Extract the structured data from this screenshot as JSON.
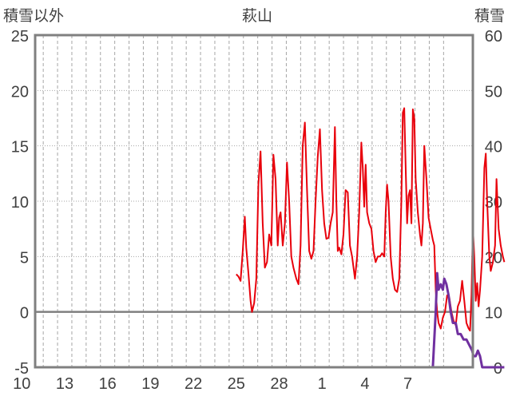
{
  "chart_data": {
    "type": "line",
    "title": "萩山",
    "ylabel_left": "積雪以外",
    "ylabel_right": "積雪",
    "x_tick_labels": [
      "10",
      "13",
      "16",
      "19",
      "22",
      "25",
      "28",
      "1",
      "4",
      "7"
    ],
    "y_left_ticks": [
      "25",
      "20",
      "15",
      "10",
      "5",
      "0",
      "-5"
    ],
    "y_right_ticks": [
      "60",
      "50",
      "40",
      "30",
      "20",
      "10",
      "0"
    ],
    "ylim_left": [
      -5,
      25
    ],
    "ylim_right": [
      0,
      60
    ],
    "grid": true,
    "colors": {
      "temperature": "#e8000b",
      "snow": "#7030a0",
      "frame": "#808080",
      "zero_line": "#7f7f7f",
      "grid": "#a6a6a6"
    },
    "series": [
      {
        "axis": "left",
        "color": "#e8000b",
        "points": [
          [
            0,
            3.4
          ],
          [
            0.15,
            3.2
          ],
          [
            0.3,
            2.8
          ],
          [
            0.45,
            5.5
          ],
          [
            0.6,
            8.6
          ],
          [
            0.7,
            5.8
          ],
          [
            0.85,
            3.5
          ],
          [
            1.0,
            1.0
          ],
          [
            1.1,
            0.0
          ],
          [
            1.25,
            0.8
          ],
          [
            1.4,
            3.0
          ],
          [
            1.55,
            11.5
          ],
          [
            1.7,
            14.5
          ],
          [
            1.85,
            8.0
          ],
          [
            2.0,
            4.0
          ],
          [
            2.15,
            4.5
          ],
          [
            2.3,
            7.0
          ],
          [
            2.45,
            6.0
          ],
          [
            2.6,
            14.2
          ],
          [
            2.75,
            12.0
          ],
          [
            2.9,
            6.0
          ],
          [
            3.0,
            8.5
          ],
          [
            3.1,
            9.0
          ],
          [
            3.25,
            6.0
          ],
          [
            3.4,
            8.0
          ],
          [
            3.55,
            13.5
          ],
          [
            3.7,
            10.0
          ],
          [
            3.85,
            5.0
          ],
          [
            4.0,
            4.0
          ],
          [
            4.2,
            3.0
          ],
          [
            4.35,
            2.5
          ],
          [
            4.5,
            6.0
          ],
          [
            4.65,
            15.0
          ],
          [
            4.8,
            17.1
          ],
          [
            4.95,
            11.0
          ],
          [
            5.1,
            5.5
          ],
          [
            5.25,
            4.8
          ],
          [
            5.4,
            5.5
          ],
          [
            5.55,
            10.0
          ],
          [
            5.7,
            14.0
          ],
          [
            5.85,
            16.5
          ],
          [
            6.0,
            11.0
          ],
          [
            6.15,
            8.0
          ],
          [
            6.3,
            6.6
          ],
          [
            6.45,
            6.7
          ],
          [
            6.6,
            8.0
          ],
          [
            6.75,
            9.0
          ],
          [
            6.9,
            16.7
          ],
          [
            7.0,
            10.0
          ],
          [
            7.1,
            5.5
          ],
          [
            7.2,
            5.8
          ],
          [
            7.35,
            5.2
          ],
          [
            7.5,
            7.0
          ],
          [
            7.65,
            11.0
          ],
          [
            7.8,
            10.8
          ],
          [
            7.95,
            6.0
          ],
          [
            8.1,
            5.0
          ],
          [
            8.3,
            3.0
          ],
          [
            8.45,
            5.0
          ],
          [
            8.6,
            9.0
          ],
          [
            8.75,
            15.3
          ],
          [
            8.85,
            13.0
          ],
          [
            8.95,
            9.5
          ],
          [
            9.05,
            13.3
          ],
          [
            9.15,
            9.0
          ],
          [
            9.3,
            8.0
          ],
          [
            9.45,
            7.5
          ],
          [
            9.6,
            5.5
          ],
          [
            9.75,
            4.5
          ],
          [
            9.9,
            5.0
          ],
          [
            10.05,
            5.0
          ],
          [
            10.2,
            5.3
          ],
          [
            10.35,
            5.0
          ],
          [
            10.45,
            9.0
          ],
          [
            10.55,
            11.5
          ],
          [
            10.65,
            10.0
          ],
          [
            10.8,
            5.0
          ],
          [
            10.95,
            3.0
          ],
          [
            11.1,
            2.0
          ],
          [
            11.25,
            1.8
          ],
          [
            11.4,
            3.0
          ],
          [
            11.55,
            10.0
          ],
          [
            11.65,
            18.0
          ],
          [
            11.75,
            18.4
          ],
          [
            11.85,
            13.0
          ],
          [
            11.95,
            8.0
          ],
          [
            12.05,
            10.5
          ],
          [
            12.15,
            11.0
          ],
          [
            12.25,
            8.0
          ],
          [
            12.35,
            18.3
          ],
          [
            12.45,
            17.5
          ],
          [
            12.55,
            12.0
          ],
          [
            12.7,
            9.0
          ],
          [
            12.85,
            7.0
          ],
          [
            12.95,
            6.0
          ],
          [
            13.05,
            8.0
          ],
          [
            13.15,
            15.0
          ],
          [
            13.3,
            12.0
          ],
          [
            13.45,
            8.5
          ],
          [
            13.6,
            7.5
          ],
          [
            13.75,
            6.5
          ],
          [
            13.85,
            6.0
          ],
          [
            13.95,
            2.0
          ],
          [
            14.05,
            0.0
          ],
          [
            14.15,
            -1.0
          ],
          [
            14.3,
            -1.5
          ],
          [
            14.45,
            -0.5
          ],
          [
            14.6,
            0.0
          ],
          [
            14.75,
            1.5
          ],
          [
            14.9,
            1.3
          ],
          [
            15.05,
            0.0
          ],
          [
            15.2,
            -0.8
          ],
          [
            15.35,
            -1.2
          ],
          [
            15.5,
            0.5
          ],
          [
            15.65,
            1.0
          ],
          [
            15.8,
            2.8
          ],
          [
            15.95,
            1.0
          ],
          [
            16.1,
            -1.0
          ],
          [
            16.25,
            -1.5
          ],
          [
            16.35,
            -1.7
          ],
          [
            16.45,
            1.5
          ],
          [
            16.55,
            7.6
          ],
          [
            16.65,
            5.0
          ],
          [
            16.75,
            1.0
          ],
          [
            16.85,
            2.6
          ],
          [
            16.95,
            0.5
          ],
          [
            17.05,
            2.0
          ],
          [
            17.2,
            5.0
          ],
          [
            17.35,
            13.0
          ],
          [
            17.45,
            14.3
          ],
          [
            17.55,
            10.0
          ],
          [
            17.7,
            5.0
          ],
          [
            17.8,
            3.7
          ],
          [
            17.95,
            4.5
          ],
          [
            18.1,
            6.0
          ],
          [
            18.2,
            12.0
          ],
          [
            18.35,
            7.5
          ],
          [
            18.5,
            6.0
          ],
          [
            18.65,
            5.0
          ],
          [
            18.75,
            4.5
          ]
        ]
      },
      {
        "axis": "right",
        "color": "#7030a0",
        "points": [
          [
            0,
            0
          ],
          [
            13.75,
            0
          ],
          [
            13.95,
            10
          ],
          [
            14.05,
            17
          ],
          [
            14.15,
            14
          ],
          [
            14.3,
            15
          ],
          [
            14.45,
            14
          ],
          [
            14.55,
            16
          ],
          [
            14.7,
            15
          ],
          [
            14.85,
            13
          ],
          [
            15.0,
            10
          ],
          [
            15.15,
            8
          ],
          [
            15.35,
            8
          ],
          [
            15.5,
            6
          ],
          [
            15.7,
            6
          ],
          [
            15.9,
            5
          ],
          [
            16.1,
            5
          ],
          [
            16.3,
            4
          ],
          [
            16.5,
            3
          ],
          [
            16.6,
            2
          ],
          [
            16.75,
            2
          ],
          [
            16.9,
            3
          ],
          [
            17.05,
            2
          ],
          [
            17.2,
            0
          ],
          [
            18.75,
            0
          ]
        ]
      }
    ]
  }
}
